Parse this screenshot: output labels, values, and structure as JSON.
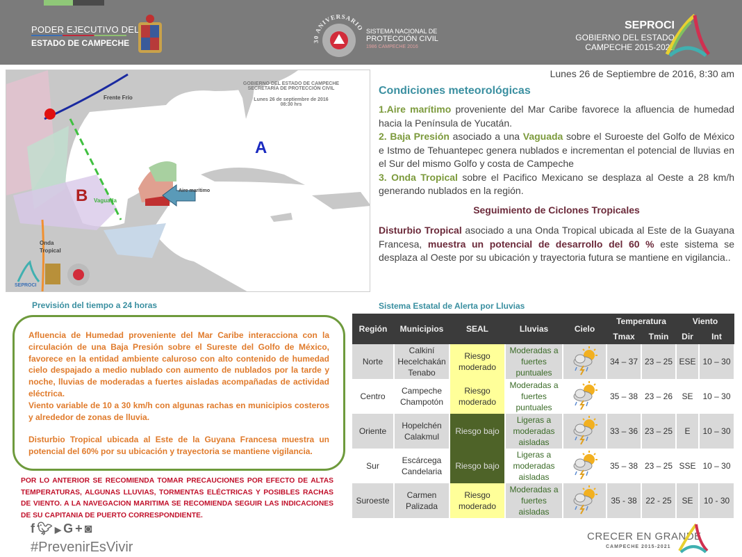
{
  "header": {
    "left_line1": "PODER EJECUTIVO DEL",
    "left_line2": "ESTADO DE CAMPECHE",
    "center_anniversary": "30 ANIVERSARIO",
    "center_line1": "SISTEMA NACIONAL DE",
    "center_line2": "PROTECCIÓN CIVIL",
    "center_line3": "1986 CAMPECHE 2016",
    "right_title": "SEPROCI",
    "right_line1": "GOBIERNO DEL ESTADO",
    "right_line2": "CAMPECHE 2015-2021"
  },
  "map": {
    "org_line1": "GOBIERNO DEL ESTADO DE CAMPECHE",
    "org_line2": "SECRETARÍA DE PROTECCIÓN CIVIL",
    "date": "Lunes 26 de septiembre de 2016",
    "time": "08:30 hrs",
    "label_front": "Frente Frío",
    "label_high": "A",
    "label_low": "B",
    "label_trough": "Vaguada",
    "label_air": "Aire marítimo",
    "label_wave_1": "Onda",
    "label_wave_2": "Tropical",
    "logo_text": "SEPROCI"
  },
  "report": {
    "date": "Lunes 26 de Septiembre de 2016, 8:30 am",
    "conditions_title": "Condiciones meteorológicas",
    "c1_bold": "1.Aire marítimo",
    "c1_text": " proveniente del Mar Caribe favorece la afluencia de humedad hacia la Península de Yucatán.",
    "c2_bold": "2. Baja Presión",
    "c2_text1": " asociado a una ",
    "c2_bold2": "Vaguada",
    "c2_text2": " sobre el Suroeste del Golfo de México e Istmo de Tehuantepec genera nublados e incrementan el potencial de lluvias en el Sur del mismo Golfo y costa de Campeche",
    "c3_bold": "3. Onda Tropical",
    "c3_text": " sobre el Pacifico Mexicano se desplaza al Oeste a 28 km/h generando nublados en la región.",
    "cyclones_title": "Seguimiento de Ciclones Tropicales",
    "cy_bold1": "Disturbio Tropical",
    "cy_text1": " asociado a una Onda Tropical ubicada al Este de la Guayana Francesa, ",
    "cy_bold2": "muestra un potencial de desarrollo del 60 %",
    "cy_text2": " este sistema se desplaza al Oeste por su ubicación y trayectoria futura  se mantiene en vigilancia.."
  },
  "forecast": {
    "title": "Previsión del tiempo a 24 horas",
    "p1": "Afluencia de Humedad proveniente del Mar Caribe interacciona con la circulación de una Baja Presión sobre el Sureste del Golfo de México, favorece en la entidad ambiente caluroso con alto contenido de humedad cielo despajado a medio nublado con aumento de nublados por la tarde y noche, lluvias de moderadas a fuertes aisladas acompañadas de actividad eléctrica.",
    "p2": "Viento variable de 10 a 30 km/h con algunas rachas en municipios costeros  y alrededor de zonas de lluvia.",
    "p3": "Disturbio Tropical ubicada al Este de la Guyana Francesa muestra un potencial del 60% por su ubicación y trayectoria se mantiene vigilancia."
  },
  "warning": "POR LO ANTERIOR SE RECOMIENDA TOMAR PRECAUCIONES POR EFECTO DE ALTAS TEMPERATURAS, ALGUNAS LLUVIAS, TORMENTAS ELÉCTRICAS Y POSIBLES RACHAS DE VIENTO. A LA NAVEGACION MARITIMA SE RECOMIENDA SEGUIR LAS INDICACIONES DE SU CAPITANIA DE PUERTO CORRESPONDIENTE.",
  "social": {
    "icons": [
      "facebook-icon",
      "twitter-icon",
      "youtube-icon",
      "google-plus-icon",
      "instagram-icon"
    ],
    "hashtag": "#PrevenirEsVivir"
  },
  "alert_table": {
    "title": "Sistema Estatal de Alerta por Lluvias",
    "headers": {
      "region": "Región",
      "municipios": "Municipios",
      "seal": "SEAL",
      "lluvias": "Lluvias",
      "cielo": "Cielo",
      "temperatura": "Temperatura",
      "tmax": "Tmax",
      "tmin": "Tmin",
      "viento": "Viento",
      "dir": "Dir",
      "int": "Int"
    },
    "rows": [
      {
        "region": "Norte",
        "municipios": "Calkiní Hecelchakán Tenabo",
        "seal": "Riesgo moderado",
        "seal_level": "moderado",
        "lluvias": "Moderadas a fuertes puntuales",
        "cielo": "storm-sun-icon",
        "tmax": "34 – 37",
        "tmin": "23 – 25",
        "dir": "ESE",
        "int": "10 – 30"
      },
      {
        "region": "Centro",
        "municipios": "Campeche Champotón",
        "seal": "Riesgo moderado",
        "seal_level": "moderado",
        "lluvias": "Moderadas a fuertes puntuales",
        "cielo": "storm-sun-icon",
        "tmax": "35 – 38",
        "tmin": "23 – 26",
        "dir": "SE",
        "int": "10 – 30"
      },
      {
        "region": "Oriente",
        "municipios": "Hopelchén Calakmul",
        "seal": "Riesgo bajo",
        "seal_level": "bajo",
        "lluvias": "Ligeras a moderadas aisladas",
        "cielo": "storm-sun-icon",
        "tmax": "33 – 36",
        "tmin": "23 – 25",
        "dir": "E",
        "int": "10 – 30"
      },
      {
        "region": "Sur",
        "municipios": "Escárcega Candelaria",
        "seal": "Riesgo bajo",
        "seal_level": "bajo",
        "lluvias": "Ligeras a moderadas aisladas",
        "cielo": "storm-sun-icon",
        "tmax": "35 – 38",
        "tmin": "23 – 25",
        "dir": "SSE",
        "int": "10 – 30"
      },
      {
        "region": "Suroeste",
        "municipios": "Carmen Palizada",
        "seal": "Riesgo moderado",
        "seal_level": "moderado",
        "lluvias": "Moderadas a fuertes aisladas",
        "cielo": "storm-sun-icon",
        "tmax": "35 - 38",
        "tmin": "22 - 25",
        "dir": "SE",
        "int": "10 - 30"
      }
    ],
    "colors": {
      "moderado": "#ffff99",
      "bajo": "#4e6328"
    }
  },
  "footer": {
    "logo_line1": "CRECER EN GRANDE",
    "logo_line2": "CAMPECHE 2015-2021"
  }
}
